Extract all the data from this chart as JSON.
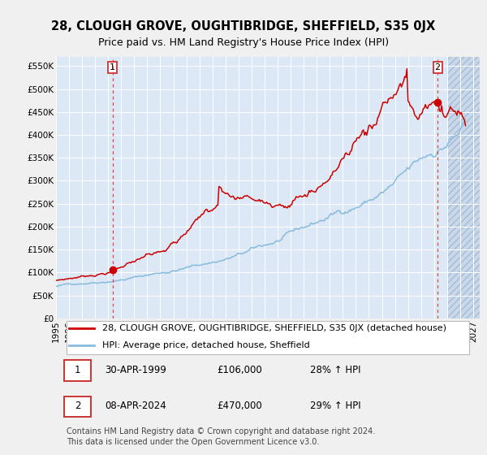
{
  "title": "28, CLOUGH GROVE, OUGHTIBRIDGE, SHEFFIELD, S35 0JX",
  "subtitle": "Price paid vs. HM Land Registry's House Price Index (HPI)",
  "fig_bg_color": "#f0f0f0",
  "plot_bg_color": "#dce8f5",
  "grid_color": "#ffffff",
  "hatch_area_color": "#c8d8ec",
  "red_line_color": "#cc0000",
  "blue_line_color": "#88bbdd",
  "marker_color": "#cc0000",
  "vline_color": "#dd4444",
  "ytick_labels": [
    "£0",
    "£50K",
    "£100K",
    "£150K",
    "£200K",
    "£250K",
    "£300K",
    "£350K",
    "£400K",
    "£450K",
    "£500K",
    "£550K"
  ],
  "ytick_values": [
    0,
    50000,
    100000,
    150000,
    200000,
    250000,
    300000,
    350000,
    400000,
    450000,
    500000,
    550000
  ],
  "ylim": [
    0,
    570000
  ],
  "xlim_start": 1995.0,
  "xlim_end": 2027.5,
  "xtick_years": [
    1995,
    1996,
    1997,
    1998,
    1999,
    2000,
    2001,
    2002,
    2003,
    2004,
    2005,
    2006,
    2007,
    2008,
    2009,
    2010,
    2011,
    2012,
    2013,
    2014,
    2015,
    2016,
    2017,
    2018,
    2019,
    2020,
    2021,
    2022,
    2023,
    2024,
    2025,
    2026,
    2027
  ],
  "marker1_x": 1999.33,
  "marker1_y": 106000,
  "marker2_x": 2024.27,
  "marker2_y": 470000,
  "hatch_start_x": 2025.0,
  "legend_entries": [
    "28, CLOUGH GROVE, OUGHTIBRIDGE, SHEFFIELD, S35 0JX (detached house)",
    "HPI: Average price, detached house, Sheffield"
  ],
  "annotation1_label": "1",
  "annotation2_label": "2",
  "table_rows": [
    {
      "num": "1",
      "date": "30-APR-1999",
      "price": "£106,000",
      "hpi": "28% ↑ HPI"
    },
    {
      "num": "2",
      "date": "08-APR-2024",
      "price": "£470,000",
      "hpi": "29% ↑ HPI"
    }
  ],
  "footer": "Contains HM Land Registry data © Crown copyright and database right 2024.\nThis data is licensed under the Open Government Licence v3.0.",
  "title_fontsize": 10.5,
  "subtitle_fontsize": 9,
  "tick_fontsize": 7.5,
  "legend_fontsize": 8,
  "table_fontsize": 8.5,
  "footer_fontsize": 7
}
